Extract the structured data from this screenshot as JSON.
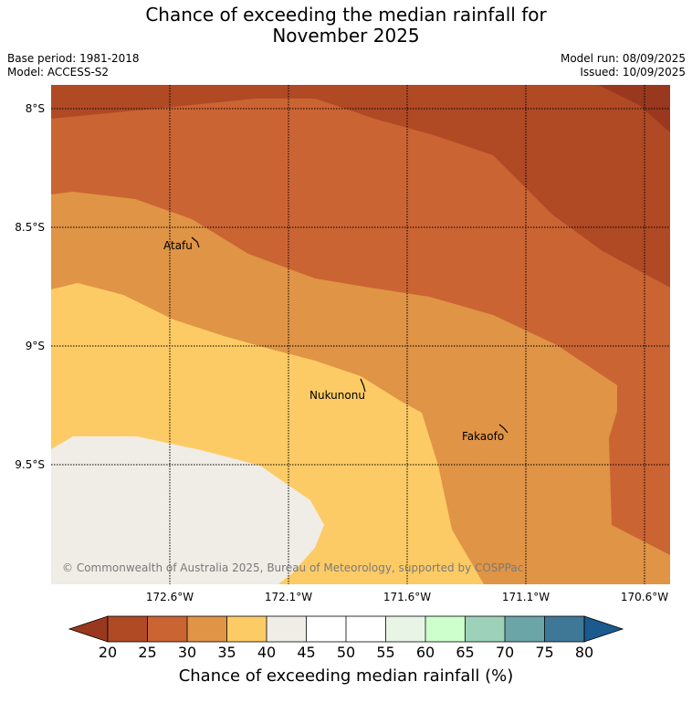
{
  "title": {
    "line1": "Chance of exceeding the median rainfall for",
    "line2": "November 2025"
  },
  "meta": {
    "base_period": "Base period: 1981-2018",
    "model": "Model: ACCESS-S2",
    "model_run": "Model run: 08/09/2025",
    "issued": "Issued: 10/09/2025"
  },
  "map": {
    "lat_labels": [
      "8°S",
      "8.5°S",
      "9°S",
      "9.5°S"
    ],
    "lon_labels": [
      "172.6°W",
      "172.1°W",
      "171.6°W",
      "171.1°W",
      "170.6°W"
    ],
    "places": [
      {
        "name": "Atafu"
      },
      {
        "name": "Nukunonu"
      },
      {
        "name": "Fakaofo"
      }
    ],
    "copyright": "© Commonwealth of Australia 2025, Bureau of Meteorology, supported by COSPPac"
  },
  "colorbar": {
    "ticks": [
      "20",
      "25",
      "30",
      "35",
      "40",
      "45",
      "50",
      "55",
      "60",
      "65",
      "70",
      "75",
      "80"
    ],
    "colors": {
      "under": "#99381e",
      "b20": "#b04a25",
      "b25": "#cb6433",
      "b30": "#e09446",
      "b35": "#fdcb65",
      "b40": "#f0ece6",
      "b45": "#ffffff",
      "b50": "#ffffff",
      "b55": "#e8f5e6",
      "b60": "#ccffcc",
      "b65": "#9ed1b9",
      "b70": "#6ca5a8",
      "b75": "#3f7797",
      "over": "#1b5a8e"
    },
    "label": "Chance of exceeding median rainfall (%)"
  }
}
